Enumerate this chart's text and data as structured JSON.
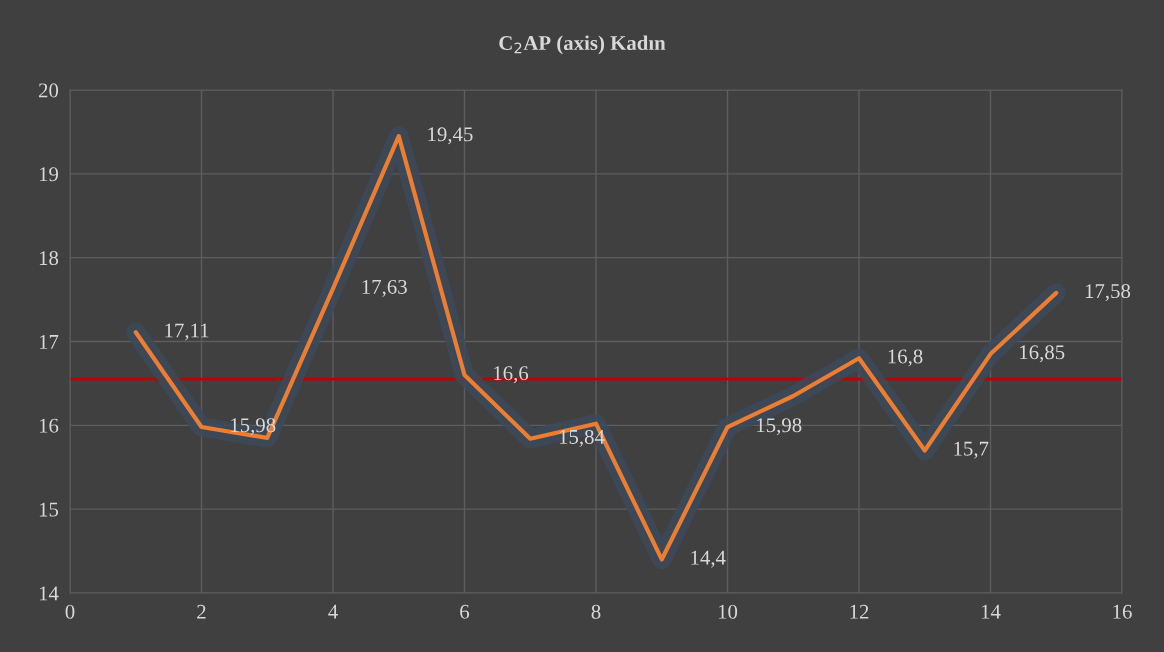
{
  "chart_data": {
    "type": "line",
    "title": "C$_{2}$AP (axis) Kadın",
    "x": [
      1,
      2,
      3,
      4,
      5,
      6,
      7,
      8,
      9,
      10,
      11,
      12,
      13,
      14,
      15
    ],
    "series": [
      {
        "color": "#ed7d31",
        "values": [
          17.11,
          15.98,
          15.85,
          17.63,
          19.45,
          16.6,
          15.84,
          16.02,
          14.4,
          15.98,
          16.35,
          16.8,
          15.7,
          16.85,
          17.58
        ],
        "value_labels": [
          "17,11",
          "15,98",
          null,
          "17,63",
          "19,45",
          "16,6",
          "15,84",
          null,
          "14,4",
          "15,98",
          null,
          "16,8",
          "15,7",
          "16,85",
          "17,58"
        ]
      }
    ],
    "xlim": [
      0,
      16
    ],
    "xticks": [
      0,
      2,
      4,
      6,
      8,
      10,
      12,
      14,
      16
    ],
    "ylim": [
      14,
      20
    ],
    "yticks": [
      14,
      15,
      16,
      17,
      18,
      19,
      20
    ],
    "ref_lines": [
      {
        "axis": "y",
        "value": 16.55,
        "color": "#c00000"
      }
    ],
    "grid": true,
    "marker": "none",
    "line_style": "solid",
    "legend": false
  }
}
